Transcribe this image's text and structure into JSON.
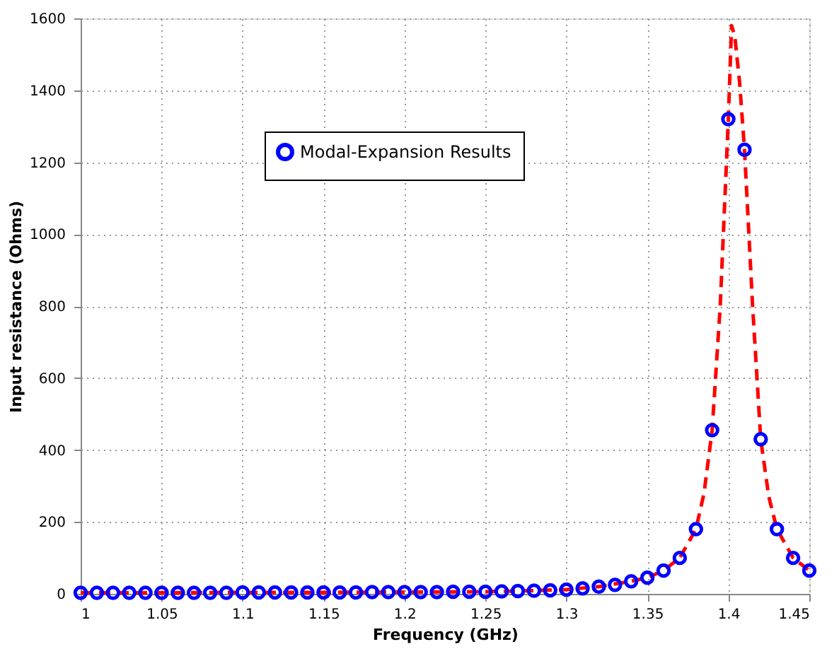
{
  "chart_data": {
    "type": "line",
    "xlabel": "Frequency (GHz)",
    "ylabel": "Input resistance (Ohms)",
    "xlim": [
      1,
      1.45
    ],
    "xticks": [
      1,
      1.05,
      1.1,
      1.15,
      1.2,
      1.25,
      1.3,
      1.35,
      1.4,
      1.45
    ],
    "ylim": [
      0,
      1600
    ],
    "yticks": [
      0,
      200,
      400,
      600,
      800,
      1000,
      1200,
      1400,
      1600
    ],
    "grid": true,
    "legend": "top left",
    "series": [
      {
        "color": "#ff0000",
        "line_style": "dashed",
        "marker": "none",
        "x": [
          1,
          1.05,
          1.1,
          1.15,
          1.2,
          1.25,
          1.28,
          1.3,
          1.32,
          1.34,
          1.35,
          1.36,
          1.37,
          1.38,
          1.385,
          1.39,
          1.395,
          1.4,
          1.402,
          1.404,
          1.407,
          1.41,
          1.415,
          1.42,
          1.425,
          1.43,
          1.44,
          1.45
        ],
        "values": [
          3,
          3,
          4,
          4,
          5,
          6,
          9,
          12,
          20,
          35,
          45,
          65,
          100,
          180,
          280,
          455,
          800,
          1320,
          1580,
          1550,
          1420,
          1235,
          800,
          430,
          270,
          180,
          100,
          65
        ]
      },
      {
        "type": "scatter",
        "name": "Modal-Expansion Results",
        "color": "#0000ff",
        "marker": "circle",
        "x": [
          1,
          1.01,
          1.02,
          1.03,
          1.04,
          1.05,
          1.06,
          1.07,
          1.08,
          1.09,
          1.1,
          1.11,
          1.12,
          1.13,
          1.14,
          1.15,
          1.16,
          1.17,
          1.18,
          1.19,
          1.2,
          1.21,
          1.22,
          1.23,
          1.24,
          1.25,
          1.26,
          1.27,
          1.28,
          1.29,
          1.3,
          1.31,
          1.32,
          1.33,
          1.34,
          1.35,
          1.36,
          1.37,
          1.38,
          1.39,
          1.4,
          1.41,
          1.42,
          1.43,
          1.44,
          1.45
        ],
        "values": [
          3,
          3,
          3,
          3,
          3,
          3,
          3,
          3,
          3,
          3,
          4,
          4,
          4,
          4,
          4,
          4,
          4,
          4,
          5,
          5,
          5,
          5,
          5,
          6,
          6,
          6,
          7,
          8,
          9,
          10,
          12,
          15,
          20,
          25,
          35,
          45,
          65,
          100,
          180,
          455,
          1320,
          1235,
          430,
          180,
          100,
          65
        ]
      }
    ]
  }
}
